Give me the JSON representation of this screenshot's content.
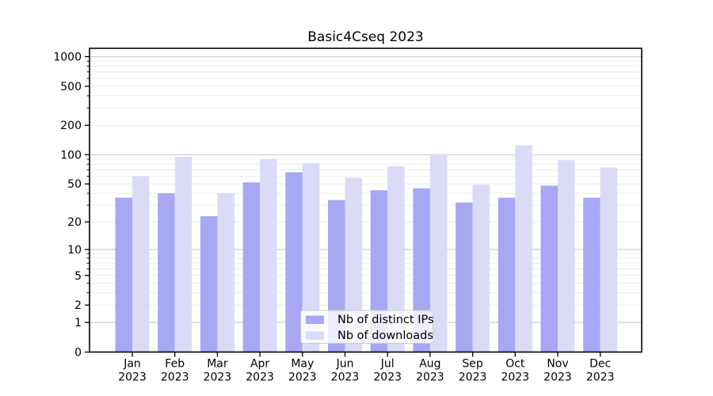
{
  "chart_data": {
    "type": "bar",
    "title": "Basic4Cseq 2023",
    "y_scale": "log10(value+1)",
    "categories": [
      "Jan",
      "Feb",
      "Mar",
      "Apr",
      "May",
      "Jun",
      "Jul",
      "Aug",
      "Sep",
      "Oct",
      "Nov",
      "Dec"
    ],
    "x_tick_second_line": "2023",
    "series": [
      {
        "name": "Nb of distinct IPs",
        "color": "#a7a7f4",
        "values": [
          36,
          40,
          23,
          52,
          66,
          34,
          43,
          45,
          32,
          36,
          48,
          36
        ]
      },
      {
        "name": "Nb of downloads",
        "color": "#dbdbf8",
        "values": [
          60,
          95,
          40,
          90,
          82,
          58,
          76,
          102,
          49,
          125,
          88,
          74
        ]
      }
    ],
    "y_ticks": [
      0,
      1,
      2,
      5,
      10,
      20,
      50,
      100,
      200,
      500,
      1000
    ],
    "y_major_gridlines": [
      1,
      10,
      100,
      1000
    ],
    "y_minor_ticks": [
      2,
      3,
      4,
      5,
      6,
      7,
      8,
      9,
      20,
      30,
      40,
      50,
      60,
      70,
      80,
      90,
      200,
      300,
      400,
      500,
      600,
      700,
      800,
      900
    ],
    "ylim": [
      0,
      1216
    ],
    "xlabel": "",
    "ylabel": "",
    "grid": {
      "major_color": "#c8c8c8",
      "minor_color": "#ececec"
    },
    "axis_color": "#000000",
    "legend": {
      "position": "lower center",
      "background": "rgba(255,255,255,0.8)",
      "border_color": "#cccccc"
    }
  }
}
